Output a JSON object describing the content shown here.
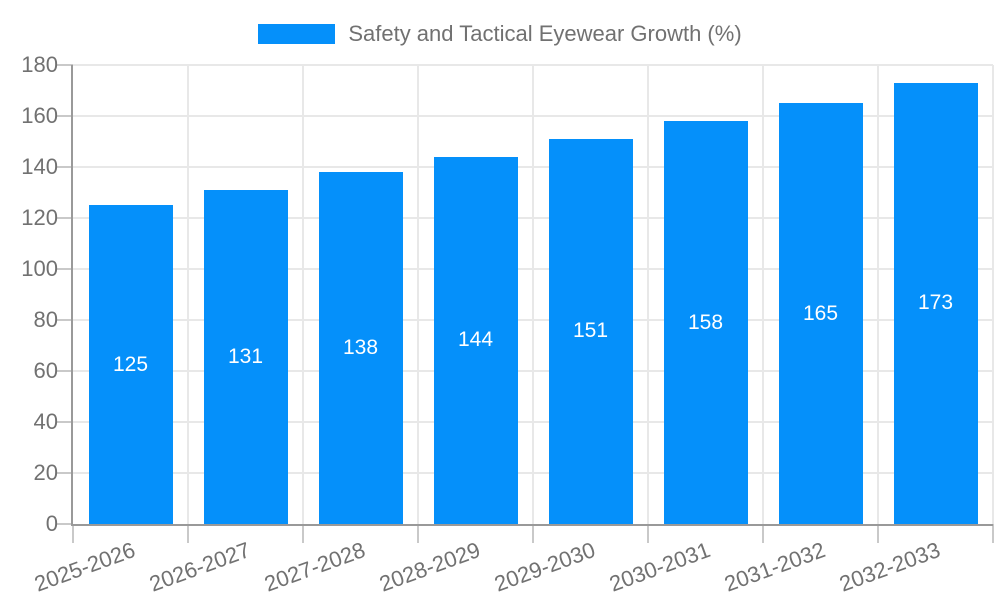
{
  "legend": {
    "label": "Safety and Tactical Eyewear Growth (%)"
  },
  "colors": {
    "bar": "#0590fa",
    "axis_line": "#999999",
    "gridline": "#e8e8e8",
    "tick": "#c9c9c9",
    "axis_text": "#717171",
    "value_text": "#ffffff",
    "background": "#ffffff"
  },
  "chart_data": {
    "type": "bar",
    "title": "Safety and Tactical Eyewear Growth (%)",
    "series_name": "Safety and Tactical Eyewear Growth (%)",
    "categories": [
      "2025-2026",
      "2026-2027",
      "2027-2028",
      "2028-2029",
      "2029-2030",
      "2030-2031",
      "2031-2032",
      "2032-2033"
    ],
    "values": [
      125,
      131,
      138,
      144,
      151,
      158,
      165,
      173
    ],
    "xlabel": "",
    "ylabel": "",
    "ylim": [
      0,
      180
    ],
    "yticks": [
      0,
      20,
      40,
      60,
      80,
      100,
      120,
      140,
      160,
      180
    ],
    "grid": true,
    "legend_position": "top",
    "value_labels": "inside-center",
    "x_label_rotation_deg": -20
  }
}
